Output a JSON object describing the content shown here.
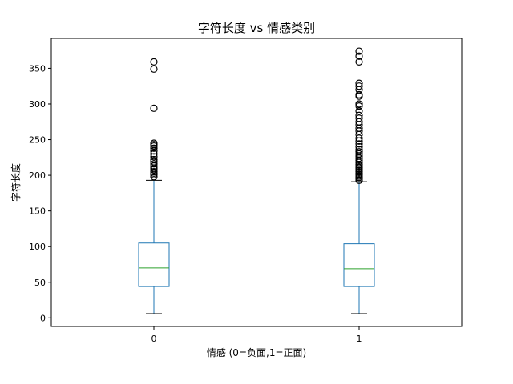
{
  "chart_data": {
    "type": "box",
    "title": "字符长度 vs 情感类别",
    "xlabel": "情感 (0=负面,1=正面)",
    "ylabel": "字符长度",
    "ylim": [
      -12,
      392
    ],
    "y_ticks": [
      0,
      50,
      100,
      150,
      200,
      250,
      300,
      350
    ],
    "categories": [
      "0",
      "1"
    ],
    "grid": false,
    "colors": {
      "box": "#1f77b4",
      "median": "#2ca02c",
      "whisker": "#1f77b4",
      "cap": "#000000",
      "flier": "#000000"
    },
    "boxes": [
      {
        "category": "0",
        "whisker_low": 6,
        "q1": 44,
        "median": 70,
        "q3": 105,
        "whisker_high": 193,
        "outliers": [
          198,
          201,
          203,
          205,
          208,
          210,
          213,
          216,
          219,
          222,
          226,
          230,
          234,
          238,
          241,
          243,
          245,
          294,
          349,
          359
        ]
      },
      {
        "category": "1",
        "whisker_low": 6,
        "q1": 44,
        "median": 69,
        "q3": 104,
        "whisker_high": 191,
        "outliers": [
          193,
          195,
          197,
          199,
          201,
          203,
          205,
          207,
          209,
          211,
          213,
          215,
          218,
          221,
          224,
          227,
          230,
          233,
          236,
          240,
          244,
          248,
          252,
          257,
          262,
          266,
          271,
          275,
          280,
          284,
          290,
          297,
          300,
          311,
          313,
          320,
          325,
          329,
          359,
          367,
          374
        ]
      }
    ]
  }
}
